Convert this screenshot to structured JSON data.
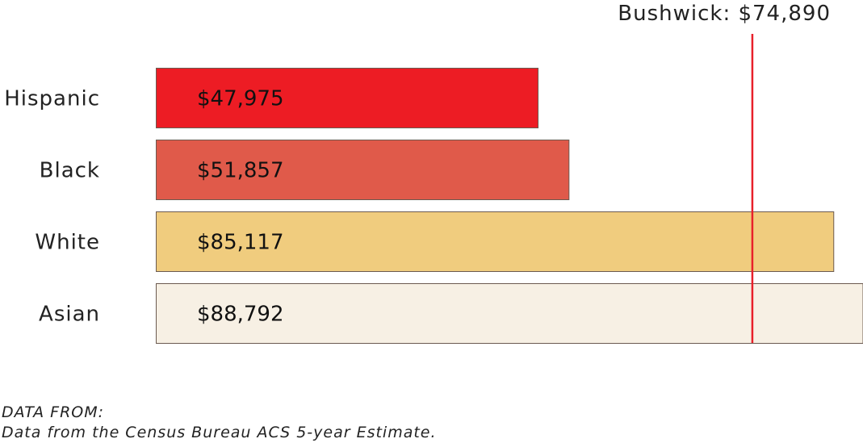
{
  "chart_data": {
    "type": "bar",
    "orientation": "horizontal",
    "categories": [
      "Hispanic",
      "Black",
      "White",
      "Asian"
    ],
    "values": [
      47975,
      51857,
      85117,
      88792
    ],
    "value_labels": [
      "$47,975",
      "$51,857",
      "$85,117",
      "$88,792"
    ],
    "colors": [
      "#ed1c24",
      "#e05a4a",
      "#f0cc7e",
      "#f7f0e4"
    ],
    "reference_line": {
      "label": "Bushwick: $74,890",
      "value": 74890,
      "color": "#e8202a"
    },
    "xlim": [
      0,
      88792
    ],
    "grid": false,
    "legend": "none"
  },
  "source": {
    "heading": "DATA FROM:",
    "text": "Data from the Census Bureau ACS 5-year Estimate."
  }
}
